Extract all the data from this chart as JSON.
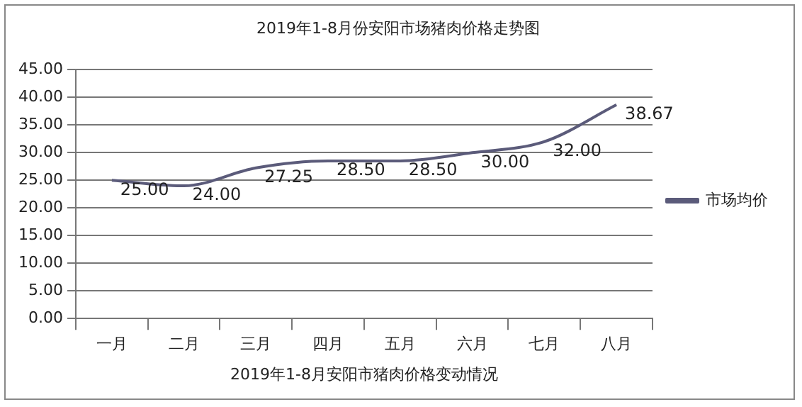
{
  "chart_data": {
    "type": "line",
    "title": "2019年1-8月份安阳市场猪肉价格走势图",
    "xlabel": "2019年1-8月安阳市猪肉价格变动情况",
    "categories": [
      "一月",
      "二月",
      "三月",
      "四月",
      "五月",
      "六月",
      "七月",
      "八月"
    ],
    "series": [
      {
        "name": "市场均价",
        "color": "#5b5b7a",
        "values": [
          25.0,
          24.0,
          27.25,
          28.5,
          28.5,
          30.0,
          32.0,
          38.67
        ],
        "value_labels": [
          "25.00",
          "24.00",
          "27.25",
          "28.50",
          "28.50",
          "30.00",
          "32.00",
          "38.67"
        ]
      }
    ],
    "ylim": [
      0,
      45
    ],
    "yticks": [
      {
        "value": 0,
        "label": "0.00"
      },
      {
        "value": 5,
        "label": "5.00"
      },
      {
        "value": 10,
        "label": "10.00"
      },
      {
        "value": 15,
        "label": "15.00"
      },
      {
        "value": 20,
        "label": "20.00"
      },
      {
        "value": 25,
        "label": "25.00"
      },
      {
        "value": 30,
        "label": "30.00"
      },
      {
        "value": 35,
        "label": "35.00"
      },
      {
        "value": 40,
        "label": "40.00"
      },
      {
        "value": 45,
        "label": "45.00"
      }
    ],
    "grid": "y",
    "legend": "right",
    "marker": "none",
    "line_style": "solid"
  }
}
